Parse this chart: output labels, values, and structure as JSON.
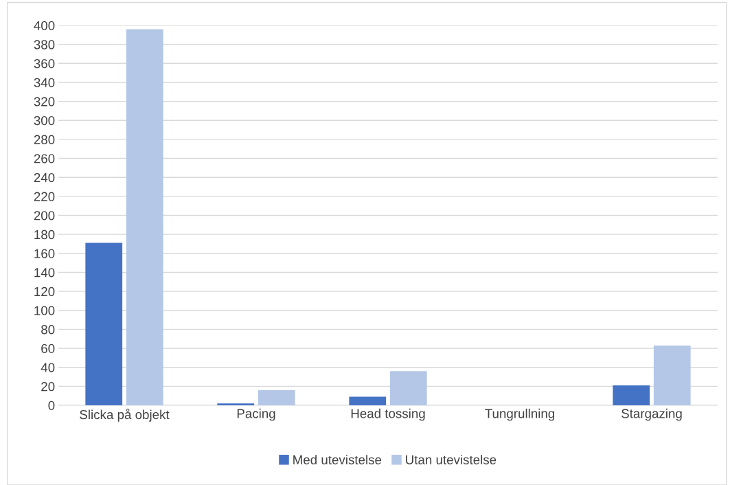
{
  "chart_data": {
    "type": "bar",
    "categories": [
      "Slicka på objekt",
      "Pacing",
      "Head tossing",
      "Tungrullning",
      "Stargazing"
    ],
    "series": [
      {
        "name": "Med utevistelse",
        "color": "#4472c4",
        "values": [
          171,
          2,
          9,
          0,
          21
        ]
      },
      {
        "name": "Utan utevistelse",
        "color": "#b4c7e7",
        "values": [
          396,
          16,
          36,
          0,
          63
        ]
      }
    ],
    "ylim": [
      0,
      400
    ],
    "yticks": [
      0,
      20,
      40,
      60,
      80,
      100,
      120,
      140,
      160,
      180,
      200,
      220,
      240,
      260,
      280,
      300,
      320,
      340,
      360,
      380,
      400
    ],
    "grid": "y",
    "legend": "bottom"
  }
}
